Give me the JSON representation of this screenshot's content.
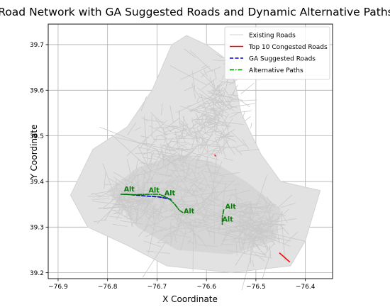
{
  "chart_data": {
    "type": "line",
    "title": "Road Network with GA Suggested Roads and Dynamic Alternative Paths",
    "xlabel": "X Coordinate",
    "ylabel": "Y Coordinate",
    "xlim": [
      -76.92,
      -76.345
    ],
    "ylim": [
      39.187,
      39.745
    ],
    "xticks": [
      -76.9,
      -76.8,
      -76.7,
      -76.6,
      -76.5,
      -76.4
    ],
    "xtick_labels": [
      "−76.9",
      "−76.8",
      "−76.7",
      "−76.6",
      "−76.5",
      "−76.4"
    ],
    "yticks": [
      39.2,
      39.3,
      39.4,
      39.5,
      39.6,
      39.7
    ],
    "ytick_labels": [
      "39.2",
      "39.3",
      "39.4",
      "39.5",
      "39.6",
      "39.7"
    ],
    "grid": true,
    "legend_position": "top-right",
    "legend": [
      {
        "label": "Existing Roads",
        "color": "#d3d3d3",
        "style": "solid"
      },
      {
        "label": "Top 10 Congested Roads",
        "color": "#ff0000",
        "style": "solid"
      },
      {
        "label": "GA Suggested Roads",
        "color": "#0000cc",
        "style": "dashed"
      },
      {
        "label": "Alternative Paths",
        "color": "#008000",
        "style": "dashdot"
      }
    ],
    "series": [
      {
        "name": "Top 10 Congested Roads",
        "color": "#ff0000",
        "segments": [
          [
            [
              -76.452,
              39.243
            ],
            [
              -76.432,
              39.224
            ]
          ],
          [
            [
              -76.583,
              39.458
            ],
            [
              -76.582,
              39.456
            ]
          ]
        ]
      },
      {
        "name": "GA Suggested Roads",
        "color": "#0000cc",
        "segments": [
          [
            [
              -76.763,
              39.372
            ],
            [
              -76.72,
              39.368
            ],
            [
              -76.695,
              39.366
            ],
            [
              -76.672,
              39.361
            ]
          ]
        ]
      },
      {
        "name": "Alternative Paths",
        "color": "#008000",
        "segments": [
          [
            [
              -76.773,
              39.372
            ],
            [
              -76.745,
              39.371
            ],
            [
              -76.715,
              39.372
            ],
            [
              -76.695,
              39.372
            ],
            [
              -76.675,
              39.362
            ],
            [
              -76.664,
              39.35
            ],
            [
              -76.655,
              39.337
            ],
            [
              -76.648,
              39.332
            ]
          ],
          [
            [
              -76.565,
              39.338
            ],
            [
              -76.568,
              39.322
            ],
            [
              -76.568,
              39.306
            ]
          ]
        ]
      }
    ],
    "annotations": [
      {
        "text": "Alt",
        "x": -76.767,
        "y": 39.378
      },
      {
        "text": "Alt",
        "x": -76.717,
        "y": 39.376
      },
      {
        "text": "Alt",
        "x": -76.685,
        "y": 39.37
      },
      {
        "text": "Alt",
        "x": -76.646,
        "y": 39.33
      },
      {
        "text": "Alt",
        "x": -76.562,
        "y": 39.34
      },
      {
        "text": "Alt",
        "x": -76.568,
        "y": 39.312
      }
    ]
  }
}
